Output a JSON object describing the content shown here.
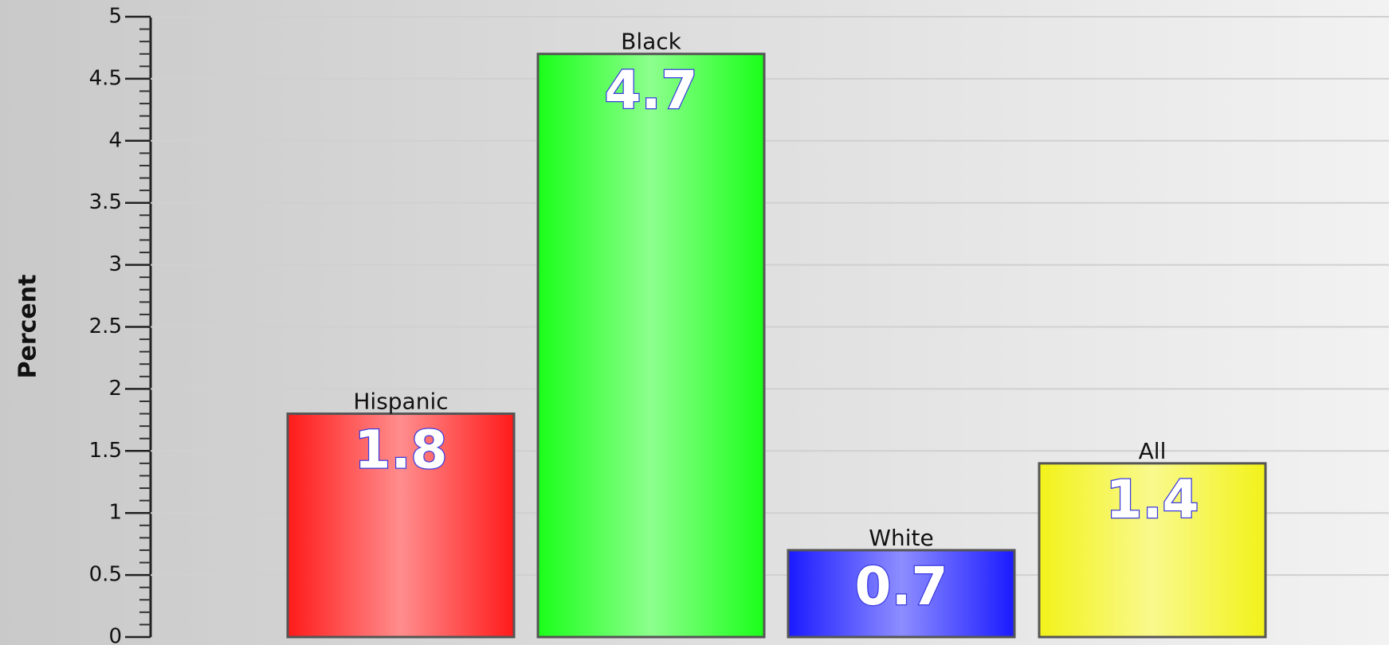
{
  "chart_data": {
    "type": "bar",
    "y_label": "Percent",
    "categories": [
      "Hispanic",
      "Black",
      "White",
      "All"
    ],
    "values": [
      1.8,
      4.7,
      0.7,
      1.4
    ],
    "colors": [
      "#ff1a1a",
      "#1aff1a",
      "#1a1aff",
      "#f2f21a"
    ],
    "ylim": [
      0,
      5
    ],
    "yticks": [
      0,
      0.5,
      1,
      1.5,
      2,
      2.5,
      3,
      3.5,
      4,
      4.5,
      5
    ],
    "grid": true
  }
}
